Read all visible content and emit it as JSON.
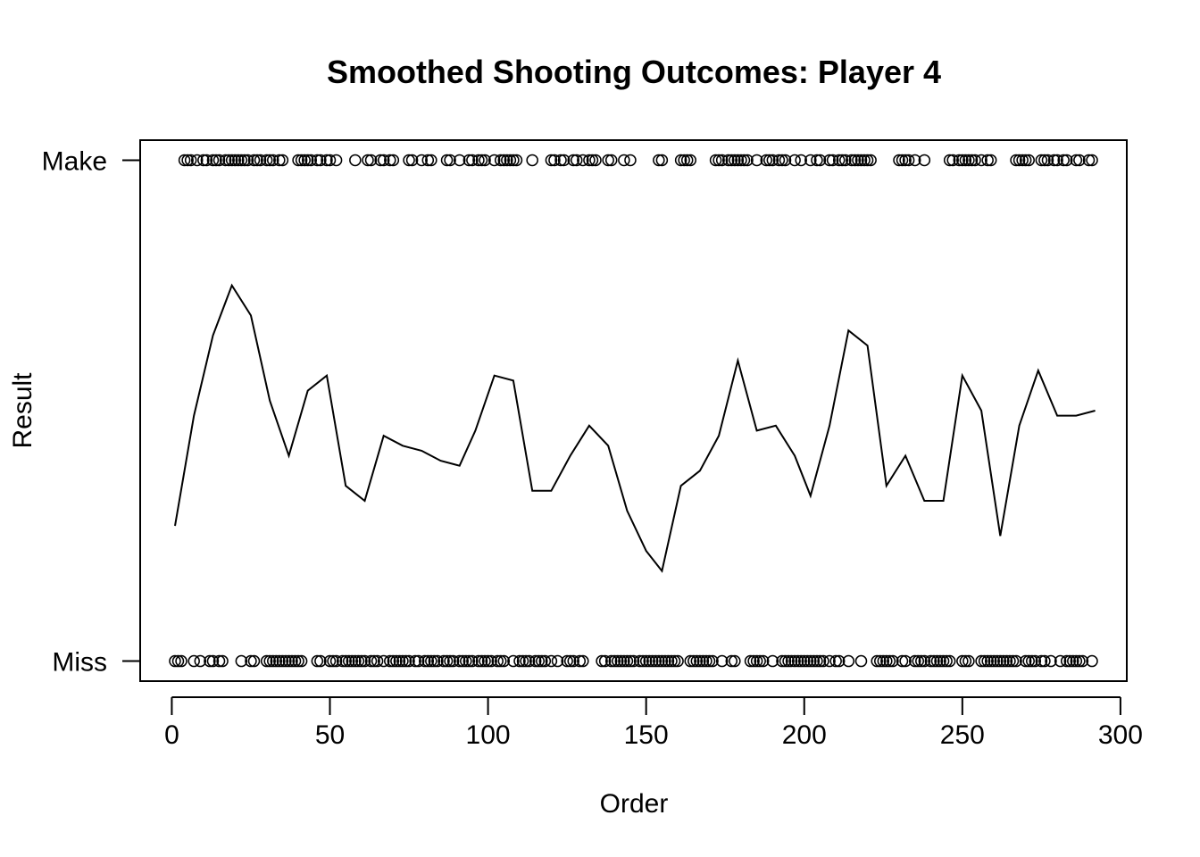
{
  "chart_data": {
    "type": "scatter",
    "title": "Smoothed Shooting Outcomes: Player 4",
    "xlabel": "Order",
    "ylabel": "Result",
    "xlim": [
      -10,
      302
    ],
    "ylim": [
      -0.04,
      1.04
    ],
    "x_ticks": [
      0,
      50,
      100,
      150,
      200,
      250,
      300
    ],
    "y_ticks": [
      {
        "value": 0,
        "label": "Miss"
      },
      {
        "value": 1,
        "label": "Make"
      }
    ],
    "grid": false,
    "series": [
      {
        "type": "points",
        "make_orders": [
          4,
          5,
          6,
          8,
          10,
          11,
          13,
          14,
          15,
          17,
          18,
          19,
          20,
          21,
          22,
          23,
          24,
          26,
          27,
          28,
          30,
          31,
          32,
          34,
          35,
          40,
          41,
          42,
          43,
          44,
          46,
          47,
          49,
          50,
          52,
          58,
          62,
          63,
          66,
          67,
          69,
          70,
          75,
          76,
          79,
          81,
          82,
          87,
          88,
          91,
          94,
          95,
          97,
          98,
          99,
          102,
          104,
          105,
          106,
          107,
          108,
          109,
          114,
          120,
          121,
          123,
          124,
          127,
          128,
          130,
          132,
          133,
          134,
          138,
          139,
          143,
          145,
          154,
          155,
          161,
          162,
          163,
          164,
          172,
          173,
          174,
          176,
          177,
          178,
          179,
          180,
          181,
          182,
          185,
          188,
          189,
          190,
          192,
          193,
          194,
          197,
          199,
          202,
          204,
          205,
          208,
          209,
          211,
          212,
          213,
          215,
          216,
          217,
          218,
          219,
          220,
          221,
          230,
          231,
          232,
          233,
          235,
          238,
          246,
          247,
          249,
          250,
          251,
          252,
          253,
          254,
          256,
          258,
          259,
          267,
          268,
          269,
          270,
          271,
          275,
          276,
          277,
          279,
          280,
          282,
          283,
          286,
          287,
          290,
          291
        ],
        "miss_orders": [
          1,
          2,
          3,
          7,
          9,
          12,
          13,
          15,
          16,
          22,
          25,
          26,
          30,
          31,
          32,
          33,
          34,
          35,
          36,
          37,
          38,
          39,
          40,
          41,
          46,
          47,
          50,
          51,
          52,
          54,
          55,
          56,
          57,
          58,
          59,
          60,
          61,
          63,
          64,
          65,
          67,
          69,
          70,
          71,
          72,
          73,
          74,
          75,
          77,
          78,
          80,
          81,
          82,
          83,
          84,
          86,
          87,
          88,
          89,
          91,
          92,
          93,
          94,
          95,
          97,
          98,
          99,
          100,
          101,
          103,
          104,
          105,
          108,
          110,
          111,
          112,
          113,
          115,
          116,
          117,
          118,
          120,
          122,
          125,
          126,
          127,
          129,
          130,
          136,
          137,
          139,
          140,
          141,
          142,
          143,
          144,
          145,
          146,
          148,
          149,
          150,
          151,
          152,
          153,
          154,
          155,
          156,
          157,
          158,
          159,
          160,
          164,
          165,
          166,
          167,
          168,
          169,
          170,
          171,
          174,
          177,
          178,
          183,
          184,
          185,
          186,
          187,
          190,
          193,
          194,
          195,
          196,
          197,
          198,
          199,
          200,
          201,
          202,
          203,
          204,
          205,
          206,
          208,
          210,
          211,
          214,
          218,
          223,
          224,
          225,
          226,
          227,
          228,
          231,
          232,
          235,
          236,
          237,
          238,
          240,
          241,
          242,
          243,
          244,
          245,
          246,
          250,
          251,
          252,
          256,
          257,
          258,
          259,
          260,
          261,
          262,
          263,
          264,
          265,
          266,
          267,
          270,
          271,
          272,
          273,
          275,
          276,
          278,
          281,
          283,
          284,
          285,
          286,
          287,
          288,
          291
        ]
      },
      {
        "type": "line",
        "x": [
          1,
          7,
          13,
          19,
          25,
          31,
          37,
          43,
          49,
          55,
          61,
          67,
          73,
          79,
          85,
          91,
          96,
          102,
          108,
          114,
          120,
          126,
          132,
          138,
          144,
          150,
          155,
          161,
          167,
          173,
          179,
          185,
          191,
          197,
          202,
          208,
          214,
          220,
          226,
          232,
          238,
          244,
          250,
          256,
          262,
          268,
          274,
          280,
          286,
          292
        ],
        "y": [
          0.27,
          0.49,
          0.65,
          0.75,
          0.69,
          0.52,
          0.41,
          0.54,
          0.57,
          0.35,
          0.32,
          0.45,
          0.43,
          0.42,
          0.4,
          0.39,
          0.46,
          0.57,
          0.56,
          0.34,
          0.34,
          0.41,
          0.47,
          0.43,
          0.3,
          0.22,
          0.18,
          0.35,
          0.38,
          0.45,
          0.6,
          0.46,
          0.47,
          0.41,
          0.33,
          0.47,
          0.66,
          0.63,
          0.35,
          0.41,
          0.32,
          0.32,
          0.57,
          0.5,
          0.25,
          0.47,
          0.58,
          0.49,
          0.49,
          0.5
        ]
      }
    ]
  }
}
